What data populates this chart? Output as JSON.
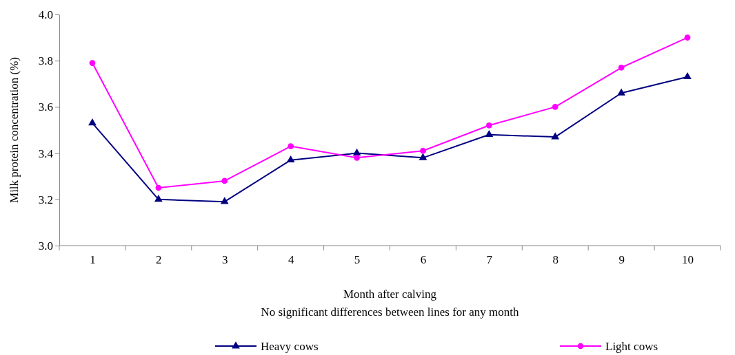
{
  "chart_data": {
    "type": "line",
    "categories": [
      "1",
      "2",
      "3",
      "4",
      "5",
      "6",
      "7",
      "8",
      "9",
      "10"
    ],
    "xlabel": "Month after calving",
    "ylabel": "Milk protein concentration (%)",
    "annotations": [
      "No significant differences between lines for any month"
    ],
    "ylim": [
      3.0,
      4.0
    ],
    "yticks": [
      {
        "value": 3.0,
        "label": "3.0"
      },
      {
        "value": 3.2,
        "label": "3.2"
      },
      {
        "value": 3.4,
        "label": "3.4"
      },
      {
        "value": 3.6,
        "label": "3.6"
      },
      {
        "value": 3.8,
        "label": "3.8"
      },
      {
        "value": 4.0,
        "label": "4.0"
      }
    ],
    "grid": false,
    "legend": "bottom",
    "line_style": "solid",
    "series": [
      {
        "name": "Heavy cows",
        "color": "#000080",
        "marker": "triangle",
        "values": [
          3.53,
          3.2,
          3.19,
          3.37,
          3.4,
          3.38,
          3.48,
          3.47,
          3.66,
          3.73
        ]
      },
      {
        "name": "Light cows",
        "color": "#ff00ff",
        "marker": "circle",
        "values": [
          3.79,
          3.25,
          3.28,
          3.43,
          3.38,
          3.41,
          3.52,
          3.6,
          3.77,
          3.9
        ]
      }
    ]
  }
}
